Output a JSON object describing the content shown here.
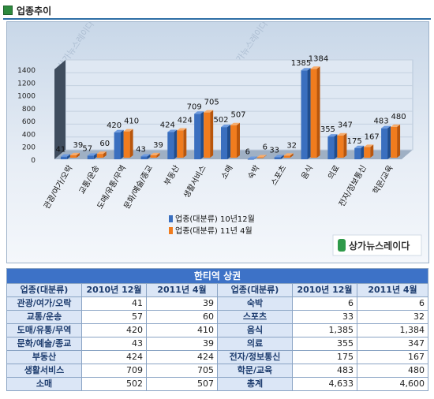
{
  "section": {
    "title": "업종추이"
  },
  "chart_data": {
    "type": "bar",
    "categories": [
      "관광/여가/오락",
      "교통/운송",
      "도매/유통/무역",
      "문화/예술/종교",
      "부동산",
      "생활서비스",
      "소매",
      "숙박",
      "스포츠",
      "음식",
      "의료",
      "전자/정보통신",
      "학문/교육"
    ],
    "series": [
      {
        "name": "업종(대분류) 10년12월",
        "values": [
          41,
          57,
          420,
          43,
          424,
          709,
          502,
          6,
          33,
          1385,
          355,
          175,
          483
        ]
      },
      {
        "name": "업종(대분류) 11년 4월",
        "values": [
          39,
          60,
          410,
          39,
          424,
          705,
          507,
          6,
          32,
          1384,
          347,
          167,
          480
        ]
      }
    ],
    "yticks": [
      0,
      200,
      400,
      600,
      800,
      1000,
      1200,
      1400
    ],
    "ylim": [
      0,
      1400
    ],
    "legend_position": "bottom-center",
    "colors": {
      "series1": "#3a6fbf",
      "series2": "#f07c1e"
    }
  },
  "watermark": "상가뉴스레이다",
  "logo_text": "상가뉴스레이다",
  "table": {
    "title": "한티역 상권",
    "headers": [
      "업종(대분류)",
      "2010년 12월",
      "2011년 4월",
      "업종(대분류)",
      "2010년 12월",
      "2011년 4월"
    ],
    "rows": [
      [
        "관광/여가/오락",
        "41",
        "39",
        "숙박",
        "6",
        "6"
      ],
      [
        "교통/운송",
        "57",
        "60",
        "스포츠",
        "33",
        "32"
      ],
      [
        "도매/유통/무역",
        "420",
        "410",
        "음식",
        "1,385",
        "1,384"
      ],
      [
        "문화/예술/종교",
        "43",
        "39",
        "의료",
        "355",
        "347"
      ],
      [
        "부동산",
        "424",
        "424",
        "전자/정보통신",
        "175",
        "167"
      ],
      [
        "생활서비스",
        "709",
        "705",
        "학문/교육",
        "483",
        "480"
      ],
      [
        "소매",
        "502",
        "507",
        "총계",
        "4,633",
        "4,600"
      ]
    ]
  }
}
